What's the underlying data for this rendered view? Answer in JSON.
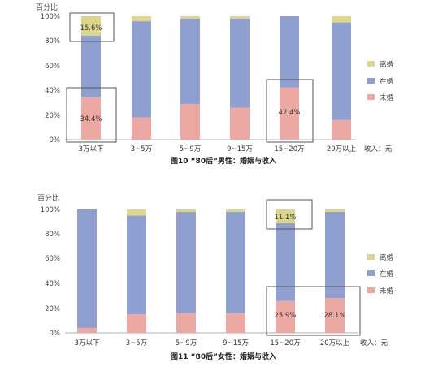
{
  "colors": {
    "married": "#8f9fcf",
    "unmarried": "#eca9a4",
    "divorced": "#dcd68c",
    "box": "#555555",
    "axis": "#999999"
  },
  "chart_data": [
    {
      "type": "bar",
      "stacked": true,
      "title": "图10 “80后”男性：婚姻与收入",
      "ylabel": "百分比",
      "xlabel": "收入：元",
      "ylim": [
        0,
        100
      ],
      "yticks": [
        "0%",
        "20%",
        "40%",
        "60%",
        "80%",
        "100%"
      ],
      "categories": [
        "3万以下",
        "3~5万",
        "5~9万",
        "9~15万",
        "15~20万",
        "20万以上"
      ],
      "series": [
        {
          "name": "未婚",
          "values": [
            34.4,
            18,
            29,
            26,
            42.4,
            16
          ]
        },
        {
          "name": "在婚",
          "values": [
            50.0,
            78,
            69,
            72,
            57.6,
            79
          ]
        },
        {
          "name": "离婚",
          "values": [
            15.6,
            4,
            2,
            2,
            0,
            5
          ]
        }
      ],
      "legend": [
        "离婚",
        "在婚",
        "未婚"
      ],
      "legend_position": "right",
      "annotations": [
        {
          "category_index": 0,
          "series": "离婚",
          "text": "15.6%"
        },
        {
          "category_index": 0,
          "series": "未婚",
          "text": "34.4%"
        },
        {
          "category_index": 4,
          "series": "未婚",
          "text": "42.4%"
        }
      ]
    },
    {
      "type": "bar",
      "stacked": true,
      "title": "图11 “80后”女性：婚姻与收入",
      "ylabel": "百分比",
      "xlabel": "收入：元",
      "ylim": [
        0,
        100
      ],
      "yticks": [
        "0%",
        "20%",
        "40%",
        "60%",
        "80%",
        "100%"
      ],
      "categories": [
        "3万以下",
        "3~5万",
        "5~9万",
        "9~15万",
        "15~20万",
        "20万以上"
      ],
      "series": [
        {
          "name": "未婚",
          "values": [
            4,
            15,
            16,
            16,
            25.9,
            28.1
          ]
        },
        {
          "name": "在婚",
          "values": [
            96,
            80,
            82,
            82,
            63.0,
            70
          ]
        },
        {
          "name": "离婚",
          "values": [
            0,
            5,
            2,
            2,
            11.1,
            2
          ]
        }
      ],
      "legend": [
        "离婚",
        "在婚",
        "未婚"
      ],
      "legend_position": "right",
      "annotations": [
        {
          "category_index": 4,
          "series": "离婚",
          "text": "11.1%"
        },
        {
          "category_index": 4,
          "series": "未婚",
          "text": "25.9%"
        },
        {
          "category_index": 5,
          "series": "未婚",
          "text": "28.1%"
        }
      ]
    }
  ]
}
